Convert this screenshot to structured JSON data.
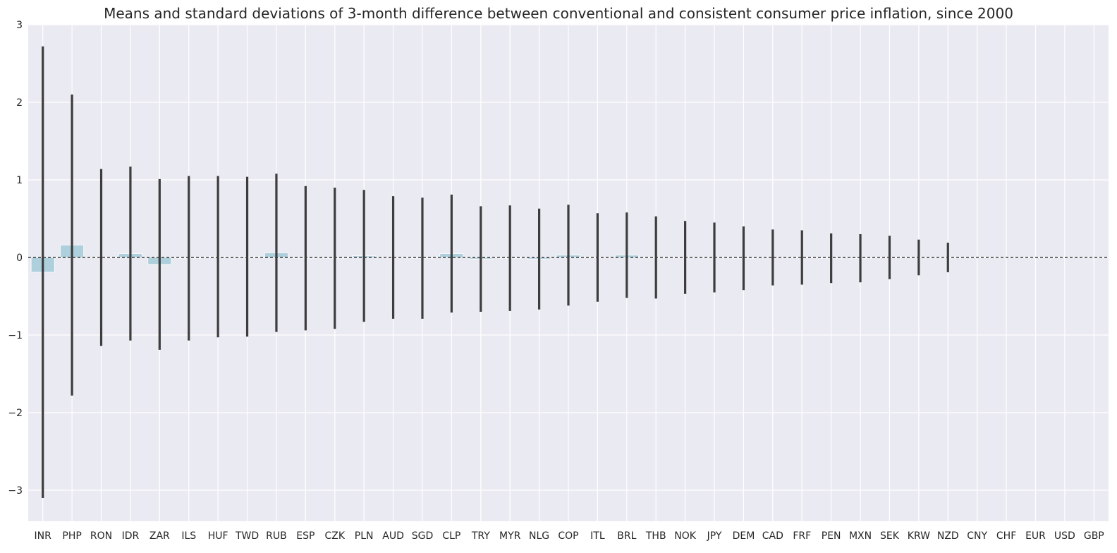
{
  "chart_data": {
    "type": "bar",
    "title": "Means and standard deviations of 3-month difference between conventional and consistent consumer price inflation, since 2000",
    "xlabel": "",
    "ylabel": "",
    "ylim": [
      -3.4,
      3.0
    ],
    "yticks": [
      -3,
      -2,
      -1,
      0,
      1,
      2,
      3
    ],
    "grid": true,
    "reference_line": 0,
    "colors": {
      "bar": "#aecfdc",
      "error_bar": "#3d3d3d",
      "background": "#eaeaf2",
      "grid": "#ffffff"
    },
    "categories": [
      "INR",
      "PHP",
      "RON",
      "IDR",
      "ZAR",
      "ILS",
      "HUF",
      "TWD",
      "RUB",
      "ESP",
      "CZK",
      "PLN",
      "AUD",
      "SGD",
      "CLP",
      "TRY",
      "MYR",
      "NLG",
      "COP",
      "ITL",
      "BRL",
      "THB",
      "NOK",
      "JPY",
      "DEM",
      "CAD",
      "FRF",
      "PEN",
      "MXN",
      "SEK",
      "KRW",
      "NZD",
      "CNY",
      "CHF",
      "EUR",
      "USD",
      "GBP"
    ],
    "series": [
      {
        "values": [
          -0.19,
          0.16,
          0.0,
          0.05,
          -0.09,
          -0.01,
          0.01,
          0.01,
          0.06,
          -0.01,
          -0.01,
          0.02,
          0.0,
          -0.01,
          0.05,
          -0.02,
          -0.01,
          -0.02,
          0.03,
          0.0,
          0.03,
          0.0,
          0.0,
          0.0,
          -0.01,
          0.0,
          0.0,
          -0.01,
          -0.01,
          0.0,
          0.0,
          0.0,
          0.0,
          0.0,
          0.0,
          0.0,
          0.0
        ],
        "std": [
          2.91,
          1.94,
          1.14,
          1.12,
          1.1,
          1.06,
          1.04,
          1.03,
          1.02,
          0.93,
          0.91,
          0.85,
          0.79,
          0.78,
          0.76,
          0.68,
          0.68,
          0.65,
          0.65,
          0.57,
          0.55,
          0.53,
          0.47,
          0.45,
          0.41,
          0.36,
          0.35,
          0.32,
          0.31,
          0.28,
          0.23,
          0.19,
          0.0,
          0.0,
          0.0,
          0.0,
          0.0
        ]
      }
    ]
  }
}
